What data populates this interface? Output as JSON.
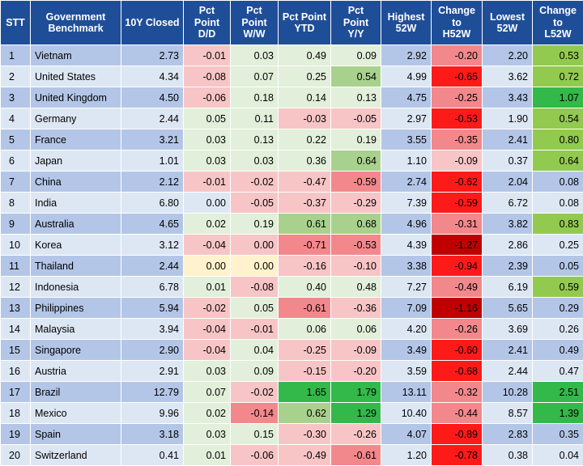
{
  "headers": [
    "STT",
    "Government\nBenchmark",
    "10Y Closed",
    "Pct\nPoint\nD/D",
    "Pct\nPoint\nW/W",
    "Pct Point\nYTD",
    "Pct\nPoint\nY/Y",
    "Highest\n52W",
    "Change\nto\nH52W",
    "Lowest\n52W",
    "Change\nto\nL52W"
  ],
  "rows": [
    [
      "1",
      "Vietnam",
      "2.73",
      "-0.01",
      "0.03",
      "0.49",
      "0.09",
      "2.92",
      "-0.20",
      "2.20",
      "0.53"
    ],
    [
      "2",
      "United States",
      "4.34",
      "-0.08",
      "0.07",
      "0.25",
      "0.54",
      "4.99",
      "-0.65",
      "3.62",
      "0.72"
    ],
    [
      "3",
      "United Kingdom",
      "4.50",
      "-0.06",
      "0.18",
      "0.14",
      "0.13",
      "4.75",
      "-0.25",
      "3.43",
      "1.07"
    ],
    [
      "4",
      "Germany",
      "2.44",
      "0.05",
      "0.11",
      "-0.03",
      "-0.05",
      "2.97",
      "-0.53",
      "1.90",
      "0.54"
    ],
    [
      "5",
      "France",
      "3.21",
      "0.03",
      "0.13",
      "0.22",
      "0.19",
      "3.55",
      "-0.35",
      "2.41",
      "0.80"
    ],
    [
      "6",
      "Japan",
      "1.01",
      "0.03",
      "0.03",
      "0.36",
      "0.64",
      "1.10",
      "-0.09",
      "0.37",
      "0.64"
    ],
    [
      "7",
      "China",
      "2.12",
      "-0.01",
      "-0.02",
      "-0.47",
      "-0.59",
      "2.74",
      "-0.62",
      "2.04",
      "0.08"
    ],
    [
      "8",
      "India",
      "6.80",
      "0.00",
      "-0.05",
      "-0.37",
      "-0.29",
      "7.39",
      "-0.59",
      "6.72",
      "0.08"
    ],
    [
      "9",
      "Australia",
      "4.65",
      "0.02",
      "0.19",
      "0.61",
      "0.68",
      "4.96",
      "-0.31",
      "3.82",
      "0.83"
    ],
    [
      "10",
      "Korea",
      "3.12",
      "-0.04",
      "0.00",
      "-0.71",
      "-0.53",
      "4.39",
      "-1.27",
      "2.86",
      "0.25"
    ],
    [
      "11",
      "Thailand",
      "2.44",
      "0.00",
      "0.00",
      "-0.16",
      "-0.10",
      "3.38",
      "-0.94",
      "2.39",
      "0.05"
    ],
    [
      "12",
      "Indonesia",
      "6.78",
      "0.01",
      "-0.08",
      "0.40",
      "0.48",
      "7.27",
      "-0.49",
      "6.19",
      "0.59"
    ],
    [
      "13",
      "Philippines",
      "5.94",
      "-0.02",
      "0.05",
      "-0.61",
      "-0.36",
      "7.09",
      "-1.16",
      "5.65",
      "0.29"
    ],
    [
      "14",
      "Malaysia",
      "3.94",
      "-0.04",
      "-0.01",
      "0.06",
      "0.06",
      "4.20",
      "-0.26",
      "3.69",
      "0.26"
    ],
    [
      "15",
      "Singapore",
      "2.90",
      "-0.04",
      "0.04",
      "-0.25",
      "-0.09",
      "3.49",
      "-0.60",
      "2.41",
      "0.49"
    ],
    [
      "16",
      "Austria",
      "2.91",
      "0.03",
      "0.09",
      "-0.15",
      "-0.20",
      "3.59",
      "-0.68",
      "2.44",
      "0.47"
    ],
    [
      "17",
      "Brazil",
      "12.79",
      "0.07",
      "-0.02",
      "1.65",
      "1.79",
      "13.11",
      "-0.32",
      "10.28",
      "2.51"
    ],
    [
      "18",
      "Mexico",
      "9.96",
      "0.02",
      "-0.14",
      "0.62",
      "1.29",
      "10.40",
      "-0.44",
      "8.57",
      "1.39"
    ],
    [
      "19",
      "Spain",
      "3.18",
      "0.03",
      "0.15",
      "-0.30",
      "-0.26",
      "4.07",
      "-0.89",
      "2.83",
      "0.35"
    ],
    [
      "20",
      "Switzerland",
      "0.41",
      "0.01",
      "-0.06",
      "-0.49",
      "-0.61",
      "1.20",
      "-0.78",
      "0.38",
      "0.04"
    ]
  ],
  "cell_colors": {
    "light_negative": "#f7c5c6",
    "medium_negative": "#f2888c",
    "strong_negative": "#ff1a1a",
    "dark_negative": "#c00000",
    "zero": "#fff2cc",
    "light_positive": "#e2efda",
    "medium_positive": "#a9d18e",
    "strong_positive": "#92c94f",
    "dark_positive": "#33b84a",
    "header_background": "#1f4e99",
    "row_shade_dark": "#b4c6e7",
    "row_shade_light": "#dde7f4"
  }
}
